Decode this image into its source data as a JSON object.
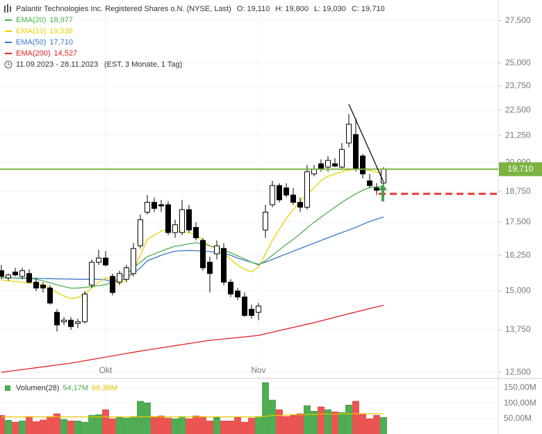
{
  "chart_data": [
    {
      "type": "candlestick",
      "title": "Palantir Technologies Inc. Registered Shares o.N. (NYSE, Last)",
      "ohlc": [
        "O: 19,110",
        "H: 19,800",
        "L: 19,030",
        "C: 19,710"
      ],
      "subtitle": "11.09.2023 - 28.11.2023",
      "period": "(EST, 3 Monate, 1 Tag)",
      "categories": [
        null,
        null,
        null,
        null,
        null,
        null,
        null,
        null,
        null,
        null,
        null,
        null,
        null,
        null,
        null,
        "Okt",
        null,
        null,
        null,
        null,
        null,
        null,
        null,
        null,
        null,
        null,
        null,
        null,
        null,
        null,
        null,
        null,
        null,
        null,
        null,
        null,
        null,
        "Nov",
        null,
        null,
        null,
        null,
        null,
        null,
        null,
        null,
        null,
        null,
        null,
        null,
        null,
        null,
        null,
        null,
        null,
        null
      ],
      "open": [
        15700,
        15450,
        15650,
        15500,
        15600,
        15300,
        15200,
        15100,
        14300,
        14000,
        14050,
        13950,
        14000,
        15200,
        16000,
        16150,
        15500,
        15300,
        15400,
        15600,
        16600,
        17900,
        18300,
        18200,
        18200,
        17100,
        17100,
        18000,
        17300,
        16800,
        16000,
        16300,
        16500,
        15300,
        15000,
        14800,
        14400,
        14300,
        17200,
        18200,
        19000,
        18900,
        18600,
        18300,
        18100,
        19500,
        19950,
        19800,
        19950,
        19800,
        20900,
        21300,
        20300,
        19200,
        18900,
        19110
      ],
      "high": [
        15900,
        15600,
        15800,
        15800,
        15750,
        15450,
        15300,
        15200,
        14400,
        14150,
        14150,
        14100,
        15000,
        16100,
        16450,
        16400,
        15600,
        15700,
        15900,
        16700,
        17800,
        18600,
        18500,
        18400,
        18350,
        17600,
        18400,
        18200,
        17500,
        16900,
        16200,
        16800,
        16700,
        15400,
        15100,
        14950,
        14550,
        14600,
        18200,
        19200,
        19100,
        19100,
        18900,
        18500,
        19900,
        19900,
        20150,
        20300,
        20200,
        20900,
        22300,
        22100,
        20400,
        19500,
        19100,
        19800
      ],
      "low": [
        15400,
        15350,
        15500,
        15400,
        15250,
        15000,
        14950,
        14550,
        13700,
        13900,
        13750,
        13800,
        13950,
        15100,
        15900,
        15850,
        14850,
        15200,
        15300,
        15500,
        16500,
        17800,
        17900,
        17900,
        17000,
        16900,
        17000,
        17100,
        16800,
        15700,
        14950,
        16100,
        15200,
        14800,
        14700,
        14150,
        14100,
        14050,
        16900,
        18100,
        18300,
        18500,
        18200,
        17900,
        18000,
        19400,
        19600,
        19600,
        19800,
        19700,
        20700,
        19600,
        19300,
        18900,
        18600,
        19030
      ],
      "close": [
        15500,
        15550,
        15550,
        15700,
        15300,
        15100,
        15100,
        14600,
        13900,
        14050,
        13850,
        14000,
        14900,
        16000,
        16150,
        15900,
        14950,
        15600,
        15800,
        16500,
        17600,
        18300,
        18050,
        18150,
        17100,
        17400,
        18000,
        17200,
        16900,
        15800,
        15600,
        16600,
        15300,
        14900,
        14800,
        14200,
        14200,
        14500,
        17900,
        19000,
        18400,
        18600,
        18300,
        18100,
        19600,
        19700,
        19700,
        20100,
        19850,
        20600,
        21800,
        19700,
        19500,
        19000,
        18800,
        19710
      ],
      "series": [
        {
          "name": "EMA(20)",
          "color": "#4caf50",
          "legend_value": "18,977",
          "values": [
            15455,
            15450,
            15440,
            15430,
            15420,
            15405,
            15340,
            15280,
            15210,
            15150,
            15095,
            15100,
            15120,
            15150,
            15180,
            15215,
            15300,
            15450,
            15580,
            15800,
            16000,
            16200,
            16300,
            16400,
            16500,
            16585,
            16620,
            16680,
            16710,
            16680,
            16600,
            16530,
            16455,
            16340,
            16230,
            16120,
            16000,
            15900,
            16050,
            16250,
            16450,
            16650,
            16840,
            17050,
            17280,
            17500,
            17700,
            17900,
            18100,
            18300,
            18480,
            18650,
            18800,
            18920,
            18950,
            18977
          ]
        },
        {
          "name": "EMA(10)",
          "color": "#e6d200",
          "legend_value": "19,538",
          "values": [
            15380,
            15350,
            15320,
            15300,
            15270,
            15240,
            15215,
            15100,
            14950,
            14830,
            14750,
            14780,
            14900,
            15100,
            15300,
            15455,
            15350,
            15260,
            15400,
            15700,
            16250,
            16840,
            17000,
            17150,
            17230,
            17150,
            17150,
            17100,
            17020,
            16800,
            16600,
            16500,
            16330,
            16100,
            15900,
            15750,
            15655,
            15830,
            16300,
            16800,
            17230,
            17650,
            18000,
            18340,
            18650,
            18900,
            19215,
            19400,
            19500,
            19600,
            19670,
            19720,
            19720,
            19650,
            19580,
            19538
          ]
        },
        {
          "name": "EMA(50)",
          "color": "#3a78c9",
          "legend_value": "17,710",
          "values": [
            15455,
            15450,
            15445,
            15440,
            15435,
            15430,
            15425,
            15420,
            15415,
            15410,
            15405,
            15400,
            15400,
            15400,
            15400,
            15380,
            15300,
            15350,
            15450,
            15600,
            15800,
            16050,
            16150,
            16250,
            16330,
            16400,
            16420,
            16430,
            16420,
            16400,
            16380,
            16360,
            16330,
            16250,
            16150,
            16070,
            16000,
            15925,
            16000,
            16100,
            16200,
            16300,
            16400,
            16500,
            16600,
            16700,
            16800,
            16900,
            17000,
            17100,
            17200,
            17300,
            17420,
            17530,
            17620,
            17710
          ]
        },
        {
          "name": "EMA(200)",
          "color": "#e02020",
          "legend_value": "14,527",
          "values": [
            12500,
            12526,
            12552,
            12578,
            12604,
            12630,
            12656,
            12682,
            12708,
            12734,
            12760,
            12795,
            12830,
            12865,
            12900,
            12935,
            12970,
            13005,
            13040,
            13075,
            13110,
            13142,
            13174,
            13206,
            13238,
            13270,
            13302,
            13334,
            13366,
            13398,
            13430,
            13451,
            13472,
            13493,
            13514,
            13535,
            13556,
            13580,
            13629,
            13678,
            13727,
            13776,
            13825,
            13874,
            13923,
            13970,
            14027,
            14084,
            14141,
            14198,
            14255,
            14310,
            14365,
            14420,
            14475,
            14527
          ]
        }
      ],
      "levels": [
        {
          "value": 19710,
          "label": "19,710",
          "color": "#7cb342"
        },
        {
          "value": 18650,
          "color": "#e53935",
          "dashed": true
        }
      ],
      "trendline": {
        "x": [
          50,
          55
        ],
        "values": [
          22800,
          19150
        ],
        "color": "#000000"
      },
      "log": true,
      "grid": true,
      "ylim": [
        12330,
        28800
      ],
      "yticks": [
        {
          "value": 27500,
          "label": "27,500"
        },
        {
          "value": 25000,
          "label": "25,000"
        },
        {
          "value": 23750,
          "label": "23,750"
        },
        {
          "value": 22500,
          "label": "22,500"
        },
        {
          "value": 21250,
          "label": "21,250"
        },
        {
          "value": 20000,
          "label": "20,000"
        },
        {
          "value": 18750,
          "label": "18,750"
        },
        {
          "value": 17500,
          "label": "17,500"
        },
        {
          "value": 16250,
          "label": "16,250"
        },
        {
          "value": 15000,
          "label": "15,000"
        },
        {
          "value": 13750,
          "label": "13,750"
        },
        {
          "value": 12500,
          "label": "12,500"
        }
      ]
    },
    {
      "type": "bar",
      "legend": "Volumen(28)",
      "value_label": "54,17M",
      "color_up": "#4caf50",
      "color_down": "#ef5350",
      "values": [
        61,
        45,
        39,
        43,
        57,
        41,
        46,
        57,
        66,
        48,
        43,
        43,
        39,
        61,
        63,
        79,
        50,
        54,
        52,
        57,
        106,
        101,
        57,
        59,
        52,
        50,
        57,
        50,
        59,
        57,
        43,
        54,
        43,
        43,
        54,
        39,
        52,
        57,
        166,
        110,
        79,
        57,
        61,
        66,
        92,
        74,
        88,
        79,
        72,
        70,
        94,
        106,
        66,
        50,
        61,
        54.17
      ],
      "average": {
        "color": "#e6c700",
        "value_label": "66,38M",
        "values": [
          56,
          56,
          56,
          56,
          56,
          56,
          56,
          56,
          56,
          56,
          56,
          56,
          56,
          56,
          56,
          56,
          56,
          56,
          56,
          56,
          56,
          56,
          56,
          56,
          56,
          56,
          56,
          56,
          56,
          56,
          56,
          56,
          56,
          56,
          56,
          56,
          56,
          56,
          58,
          60,
          61,
          62,
          63,
          63,
          64,
          64,
          65,
          65,
          65,
          66,
          66,
          66,
          66,
          66,
          66,
          66.38
        ]
      },
      "ylim": [
        0,
        177
      ],
      "yticks": [
        {
          "value": 50,
          "label": "50,00M"
        },
        {
          "value": 100,
          "label": "100,00M"
        },
        {
          "value": 150,
          "label": "150,00M"
        }
      ]
    }
  ]
}
